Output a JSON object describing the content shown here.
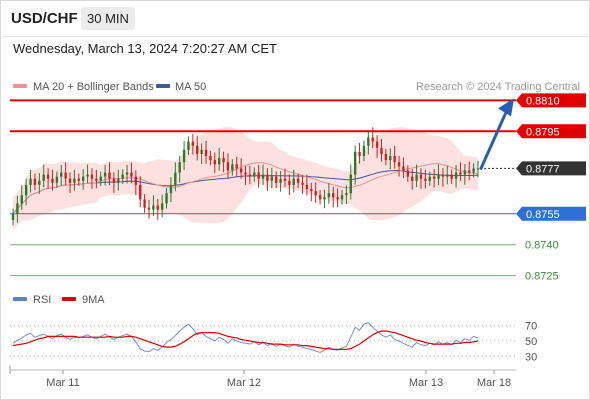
{
  "header": {
    "pair": "USD/CHF",
    "timeframe": "30 MIN"
  },
  "timestamp": "Wednesday, March 13, 2024 7:20:27 AM CET",
  "legend": {
    "ma20": "MA 20 + Bollinger Bands",
    "ma50": "MA 50",
    "credit": "Research © 2024 Trading Central"
  },
  "colors": {
    "resistance": "#e00000",
    "current": "#333333",
    "pivot": "#2f6fd6",
    "support": "#3c8a3c",
    "bollinger": "#fcd6d6",
    "ma20": "#f09090",
    "ma50": "#3c5a96",
    "bull_candle": "#2d7a2d",
    "bear_candle": "#cc2222",
    "arrow": "#2a5fb0",
    "rsi": "#5b7fd6",
    "rsi_ma": "#e00000"
  },
  "chart_data": [
    {
      "type": "candlestick",
      "x_labels": [
        "Mar 11",
        "Mar 12",
        "Mar 13",
        "Mar 18"
      ],
      "y_range": [
        0.872,
        0.8815
      ],
      "levels": [
        {
          "name": "resistance-2",
          "value": 0.881,
          "label": "0.8810",
          "kind": "resistance"
        },
        {
          "name": "resistance-1",
          "value": 0.8795,
          "label": "0.8795",
          "kind": "resistance"
        },
        {
          "name": "last-price",
          "value": 0.8777,
          "label": "0.8777",
          "kind": "current"
        },
        {
          "name": "pivot",
          "value": 0.8755,
          "label": "0.8755",
          "kind": "pivot"
        },
        {
          "name": "support-1",
          "value": 0.874,
          "label": "0.8740",
          "kind": "support"
        },
        {
          "name": "support-2",
          "value": 0.8725,
          "label": "0.8725",
          "kind": "support"
        }
      ],
      "close": [
        0.8755,
        0.876,
        0.8764,
        0.8769,
        0.8772,
        0.8769,
        0.8771,
        0.8774,
        0.8772,
        0.877,
        0.8773,
        0.8775,
        0.8772,
        0.877,
        0.8772,
        0.8771,
        0.8773,
        0.8774,
        0.8772,
        0.8771,
        0.8773,
        0.8775,
        0.8772,
        0.877,
        0.8772,
        0.8774,
        0.8775,
        0.8773,
        0.8769,
        0.8762,
        0.8758,
        0.8757,
        0.8759,
        0.8757,
        0.876,
        0.8765,
        0.8769,
        0.8775,
        0.878,
        0.8786,
        0.879,
        0.8788,
        0.8784,
        0.8786,
        0.8783,
        0.8781,
        0.8779,
        0.8782,
        0.878,
        0.8776,
        0.8779,
        0.8777,
        0.8775,
        0.8774,
        0.8773,
        0.8775,
        0.8772,
        0.8774,
        0.8771,
        0.8773,
        0.877,
        0.8772,
        0.8771,
        0.8769,
        0.8772,
        0.877,
        0.8769,
        0.8767,
        0.8766,
        0.8764,
        0.8762,
        0.8763,
        0.8765,
        0.8763,
        0.8762,
        0.8764,
        0.8765,
        0.8774,
        0.8785,
        0.8783,
        0.8788,
        0.8792,
        0.879,
        0.8787,
        0.8784,
        0.8781,
        0.8783,
        0.878,
        0.8778,
        0.8776,
        0.8773,
        0.8771,
        0.8774,
        0.8772,
        0.8771,
        0.8773,
        0.8772,
        0.8774,
        0.8773,
        0.8774,
        0.8772,
        0.8775,
        0.8774,
        0.8776,
        0.8775,
        0.8777,
        0.8777
      ]
    },
    {
      "type": "line",
      "name": "RSI",
      "x_labels": [
        "Mar 11",
        "Mar 12",
        "Mar 13",
        "Mar 18"
      ],
      "y_ticks": [
        30,
        50,
        70
      ],
      "legend": [
        "RSI",
        "9MA"
      ],
      "series": [
        {
          "name": "RSI",
          "values": [
            47,
            51,
            54,
            58,
            60,
            55,
            57,
            59,
            56,
            53,
            57,
            59,
            55,
            52,
            55,
            54,
            56,
            58,
            55,
            53,
            56,
            59,
            55,
            52,
            55,
            57,
            59,
            56,
            49,
            40,
            37,
            36,
            40,
            38,
            42,
            48,
            52,
            57,
            63,
            68,
            72,
            66,
            58,
            61,
            56,
            53,
            50,
            55,
            52,
            47,
            53,
            50,
            48,
            47,
            46,
            49,
            45,
            48,
            44,
            47,
            43,
            46,
            44,
            42,
            46,
            43,
            42,
            40,
            39,
            37,
            35,
            38,
            42,
            39,
            38,
            41,
            43,
            55,
            68,
            64,
            72,
            74,
            68,
            63,
            58,
            55,
            58,
            52,
            50,
            47,
            44,
            42,
            48,
            45,
            44,
            47,
            45,
            49,
            46,
            48,
            45,
            51,
            48,
            53,
            51,
            56,
            54
          ]
        },
        {
          "name": "9MA",
          "values": [
            44,
            45,
            46,
            47,
            49,
            51,
            53,
            54,
            56,
            56,
            56,
            56,
            56,
            56,
            56,
            55,
            55,
            55,
            55,
            55,
            55,
            55,
            56,
            55,
            55,
            55,
            56,
            56,
            55,
            53,
            51,
            49,
            47,
            45,
            43,
            42,
            42,
            43,
            46,
            49,
            53,
            57,
            60,
            61,
            61,
            61,
            61,
            60,
            58,
            56,
            55,
            54,
            52,
            51,
            50,
            49,
            48,
            48,
            47,
            46,
            46,
            46,
            45,
            45,
            45,
            45,
            44,
            44,
            43,
            42,
            41,
            40,
            40,
            39,
            39,
            39,
            39,
            40,
            43,
            46,
            50,
            54,
            58,
            61,
            63,
            63,
            62,
            61,
            59,
            57,
            55,
            53,
            51,
            50,
            48,
            47,
            46,
            46,
            46,
            46,
            46,
            47,
            47,
            48,
            48,
            49,
            50
          ]
        }
      ]
    }
  ]
}
